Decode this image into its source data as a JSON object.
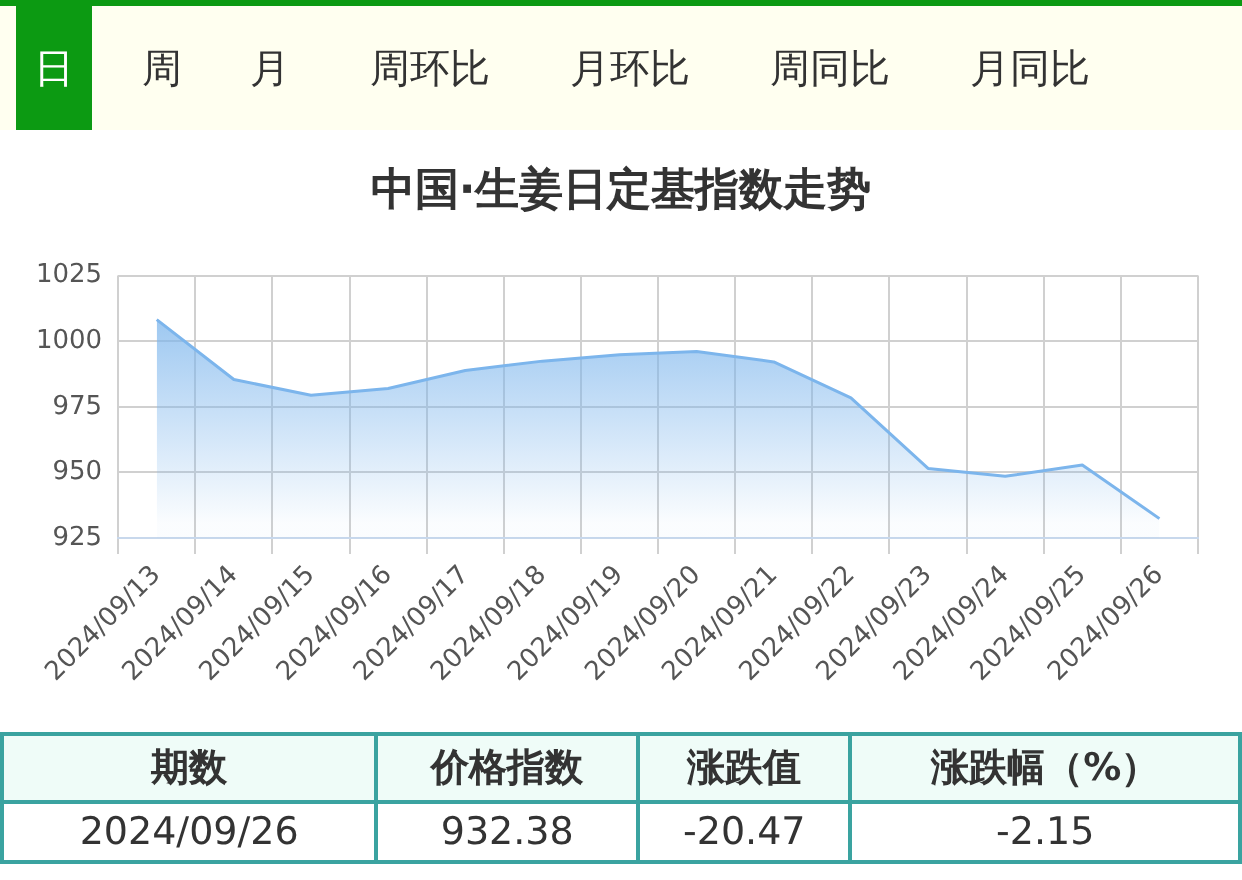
{
  "chart_data": {
    "type": "area",
    "title": "中国·生姜日定基指数走势",
    "categories": [
      "2024/09/13",
      "2024/09/14",
      "2024/09/15",
      "2024/09/16",
      "2024/09/17",
      "2024/09/18",
      "2024/09/19",
      "2024/09/20",
      "2024/09/21",
      "2024/09/22",
      "2024/09/23",
      "2024/09/24",
      "2024/09/25",
      "2024/09/26"
    ],
    "series": [
      {
        "color": "#7cb5ec",
        "values": [
          1008.2,
          985.4,
          979.4,
          982,
          988.8,
          992.4,
          994.8,
          996.1,
          992.1,
          978.4,
          951.5,
          948.5,
          952.85,
          932.38
        ]
      }
    ],
    "ylim": [
      925,
      1025
    ],
    "yticks": [
      925,
      950,
      975,
      1000,
      1025
    ],
    "grid": true,
    "legend": false,
    "marker": "none",
    "annotations": [
      "日",
      "周",
      "月",
      "周环比",
      "月环比",
      "周同比",
      "月同比",
      "期数",
      "价格指数",
      "涨跌值",
      "涨跌幅（%）",
      "2024/09/26",
      "932.38",
      "-20.47",
      "-2.15"
    ]
  }
}
